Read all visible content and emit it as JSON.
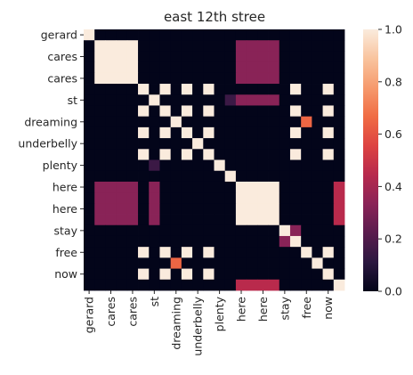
{
  "chart_data": {
    "type": "heatmap",
    "title": "east 12th stree",
    "xlabel": "",
    "ylabel": "",
    "n": 24,
    "row_tick_labels": [
      {
        "index": 0,
        "label": "gerard"
      },
      {
        "index": 2,
        "label": "cares"
      },
      {
        "index": 4,
        "label": "cares"
      },
      {
        "index": 6,
        "label": "st"
      },
      {
        "index": 8,
        "label": "dreaming"
      },
      {
        "index": 10,
        "label": "underbelly"
      },
      {
        "index": 12,
        "label": "plenty"
      },
      {
        "index": 14,
        "label": "here"
      },
      {
        "index": 16,
        "label": "here"
      },
      {
        "index": 18,
        "label": "stay"
      },
      {
        "index": 20,
        "label": "free"
      },
      {
        "index": 22,
        "label": "now"
      }
    ],
    "col_tick_labels": [
      {
        "index": 0,
        "label": "gerard"
      },
      {
        "index": 2,
        "label": "cares"
      },
      {
        "index": 4,
        "label": "cares"
      },
      {
        "index": 6,
        "label": "st"
      },
      {
        "index": 8,
        "label": "dreaming"
      },
      {
        "index": 10,
        "label": "underbelly"
      },
      {
        "index": 12,
        "label": "plenty"
      },
      {
        "index": 14,
        "label": "here"
      },
      {
        "index": 16,
        "label": "here"
      },
      {
        "index": 18,
        "label": "stay"
      },
      {
        "index": 20,
        "label": "free"
      },
      {
        "index": 22,
        "label": "now"
      }
    ],
    "values": [
      [
        1,
        0,
        0,
        0,
        0,
        0,
        0,
        0,
        0,
        0,
        0,
        0,
        0,
        0,
        0,
        0,
        0,
        0,
        0,
        0,
        0,
        0,
        0,
        0
      ],
      [
        0,
        1,
        1,
        1,
        1,
        0,
        0,
        0,
        0,
        0,
        0,
        0,
        0,
        0,
        0.33,
        0.33,
        0.33,
        0.33,
        0,
        0,
        0,
        0,
        0,
        0
      ],
      [
        0,
        1,
        1,
        1,
        1,
        0,
        0,
        0,
        0,
        0,
        0,
        0,
        0,
        0,
        0.33,
        0.33,
        0.33,
        0.33,
        0,
        0,
        0,
        0,
        0,
        0
      ],
      [
        0,
        1,
        1,
        1,
        1,
        0,
        0,
        0,
        0,
        0,
        0,
        0,
        0,
        0,
        0.33,
        0.33,
        0.33,
        0.33,
        0,
        0,
        0,
        0,
        0,
        0
      ],
      [
        0,
        1,
        1,
        1,
        1,
        0,
        0,
        0,
        0,
        0,
        0,
        0,
        0,
        0,
        0.33,
        0.33,
        0.33,
        0.33,
        0,
        0,
        0,
        0,
        0,
        0
      ],
      [
        0,
        0,
        0,
        0,
        0,
        1,
        0,
        1,
        0,
        1,
        0,
        1,
        0,
        0,
        0,
        0,
        0,
        0,
        0,
        1,
        0,
        0,
        1,
        0
      ],
      [
        0,
        0,
        0,
        0,
        0,
        0,
        1,
        0,
        0,
        0,
        0,
        0,
        0,
        0.15,
        0.33,
        0.33,
        0.33,
        0.33,
        0,
        0,
        0,
        0,
        0,
        0
      ],
      [
        0,
        0,
        0,
        0,
        0,
        1,
        0,
        1,
        0,
        1,
        0,
        1,
        0,
        0,
        0,
        0,
        0,
        0,
        0,
        1,
        0,
        0,
        1,
        0
      ],
      [
        0,
        0,
        0,
        0,
        0,
        0,
        0,
        0,
        1,
        0,
        0,
        0,
        0,
        0,
        0,
        0,
        0,
        0,
        0,
        0,
        0.65,
        0,
        0,
        0
      ],
      [
        0,
        0,
        0,
        0,
        0,
        1,
        0,
        1,
        0,
        1,
        0,
        1,
        0,
        0,
        0,
        0,
        0,
        0,
        0,
        1,
        0,
        0,
        1,
        0
      ],
      [
        0,
        0,
        0,
        0,
        0,
        0,
        0,
        0,
        0,
        0,
        1,
        0,
        0,
        0,
        0,
        0,
        0,
        0,
        0,
        0,
        0,
        0,
        0,
        0
      ],
      [
        0,
        0,
        0,
        0,
        0,
        1,
        0,
        1,
        0,
        1,
        0,
        1,
        0,
        0,
        0,
        0,
        0,
        0,
        0,
        1,
        0,
        0,
        1,
        0
      ],
      [
        0,
        0,
        0,
        0,
        0,
        0,
        0.15,
        0,
        0,
        0,
        0,
        0,
        1,
        0,
        0,
        0,
        0,
        0,
        0,
        0,
        0,
        0,
        0,
        0
      ],
      [
        0,
        0,
        0,
        0,
        0,
        0,
        0,
        0,
        0,
        0,
        0,
        0,
        0,
        1,
        0,
        0,
        0,
        0,
        0,
        0,
        0,
        0,
        0,
        0
      ],
      [
        0,
        0.33,
        0.33,
        0.33,
        0.33,
        0,
        0.33,
        0,
        0,
        0,
        0,
        0,
        0,
        0,
        1,
        1,
        1,
        1,
        0,
        0,
        0,
        0,
        0,
        0.45
      ],
      [
        0,
        0.33,
        0.33,
        0.33,
        0.33,
        0,
        0.33,
        0,
        0,
        0,
        0,
        0,
        0,
        0,
        1,
        1,
        1,
        1,
        0,
        0,
        0,
        0,
        0,
        0.45
      ],
      [
        0,
        0.33,
        0.33,
        0.33,
        0.33,
        0,
        0.33,
        0,
        0,
        0,
        0,
        0,
        0,
        0,
        1,
        1,
        1,
        1,
        0,
        0,
        0,
        0,
        0,
        0.45
      ],
      [
        0,
        0.33,
        0.33,
        0.33,
        0.33,
        0,
        0.33,
        0,
        0,
        0,
        0,
        0,
        0,
        0,
        1,
        1,
        1,
        1,
        0,
        0,
        0,
        0,
        0,
        0.45
      ],
      [
        0,
        0,
        0,
        0,
        0,
        0,
        0,
        0,
        0,
        0,
        0,
        0,
        0,
        0,
        0,
        0,
        0,
        0,
        1,
        0.33,
        0,
        0,
        0,
        0
      ],
      [
        0,
        0,
        0,
        0,
        0,
        0,
        0,
        0,
        0,
        0,
        0,
        0,
        0,
        0,
        0,
        0,
        0,
        0,
        0.33,
        1,
        0,
        0,
        0,
        0
      ],
      [
        0,
        0,
        0,
        0,
        0,
        1,
        0,
        1,
        0,
        1,
        0,
        1,
        0,
        0,
        0,
        0,
        0,
        0,
        0,
        0,
        1,
        0,
        1,
        0
      ],
      [
        0,
        0,
        0,
        0,
        0,
        0,
        0,
        0,
        0.65,
        0,
        0,
        0,
        0,
        0,
        0,
        0,
        0,
        0,
        0,
        0,
        0,
        1,
        0,
        0
      ],
      [
        0,
        0,
        0,
        0,
        0,
        1,
        0,
        1,
        0,
        1,
        0,
        1,
        0,
        0,
        0,
        0,
        0,
        0,
        0,
        0,
        0,
        0,
        1,
        0
      ],
      [
        0,
        0,
        0,
        0,
        0,
        0,
        0,
        0,
        0,
        0,
        0,
        0,
        0,
        0,
        0.45,
        0.45,
        0.45,
        0.45,
        0,
        0,
        0,
        0,
        0,
        1
      ]
    ],
    "colorbar": {
      "min": 0,
      "max": 1,
      "tick_values": [
        0,
        0.2,
        0.4,
        0.6,
        0.8,
        1
      ],
      "tick_labels": [
        "0.0",
        "0.2",
        "0.4",
        "0.6",
        "0.8",
        "1.0"
      ],
      "colormap": "rocket",
      "colormap_stops": [
        "#03051a",
        "#2b1740",
        "#5a1c4e",
        "#8a2357",
        "#b7294d",
        "#dd4341",
        "#f06c44",
        "#f69a6d",
        "#f9c49e",
        "#faebdd"
      ]
    },
    "grid": false,
    "legend": "colorbar-right"
  }
}
